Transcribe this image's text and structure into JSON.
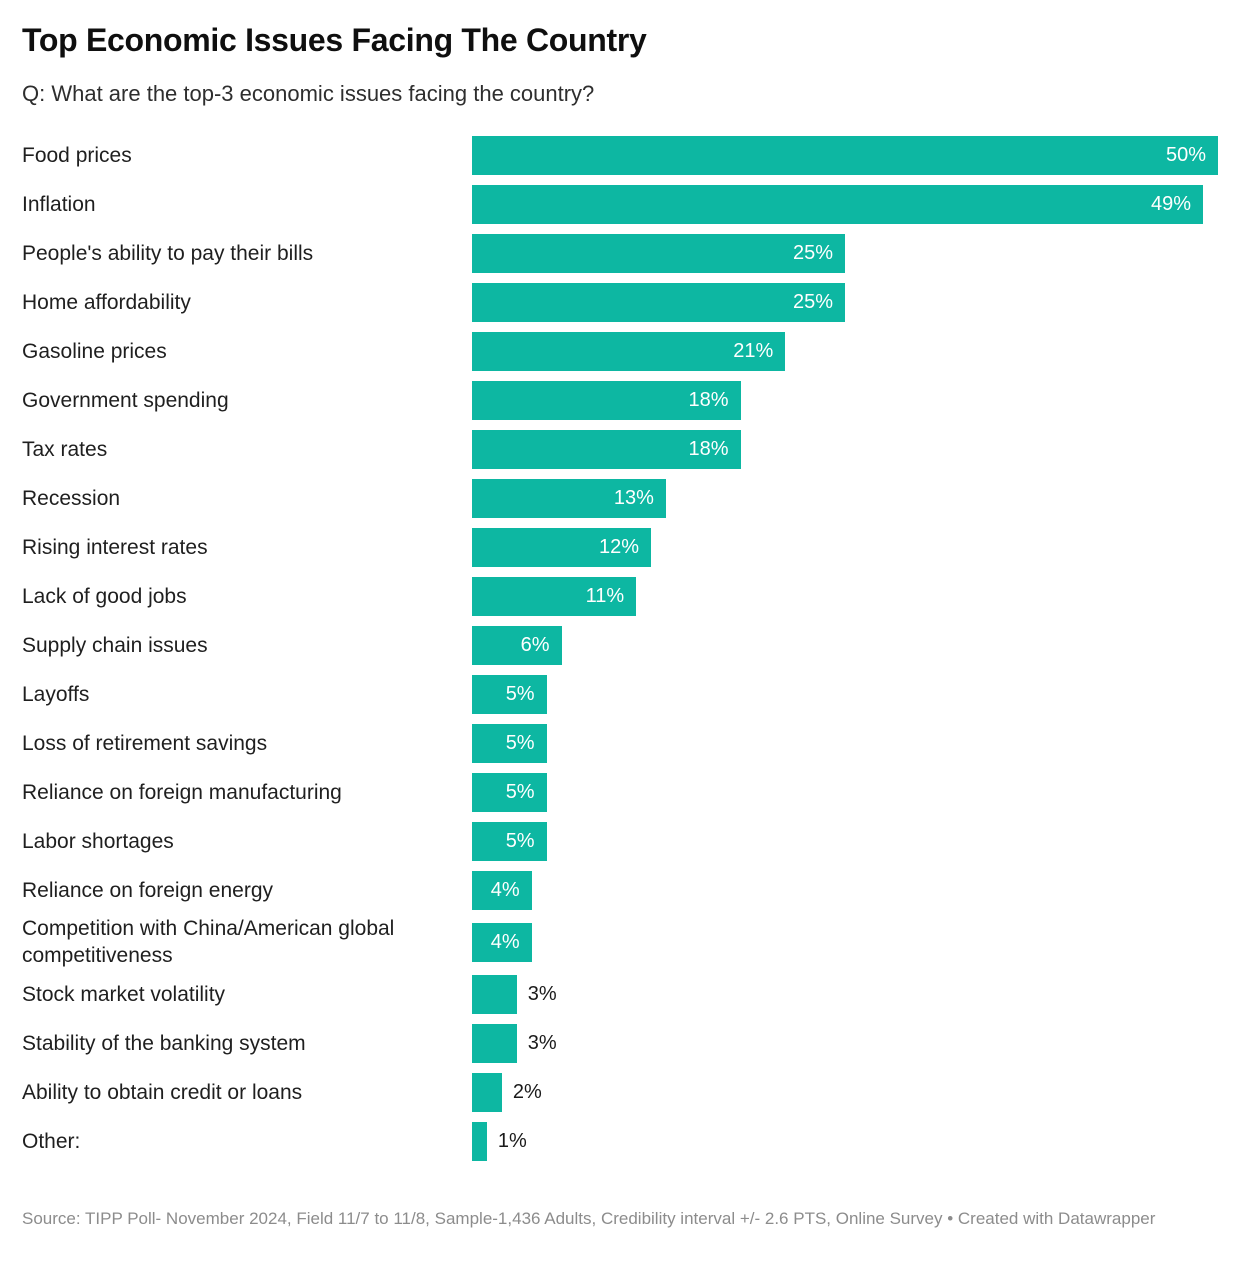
{
  "header": {
    "title": "Top Economic Issues Facing The Country",
    "subtitle": "Q: What are the top-3 economic issues facing the country?"
  },
  "chart_data": {
    "type": "bar",
    "orientation": "horizontal",
    "title": "Top Economic Issues Facing The Country",
    "subtitle": "Q: What are the top-3 economic issues facing the country?",
    "categories": [
      "Food prices",
      "Inflation",
      "People's ability to pay their bills",
      "Home affordability",
      "Gasoline prices",
      "Government spending",
      "Tax rates",
      "Recession",
      "Rising interest rates",
      "Lack of good jobs",
      "Supply chain issues",
      "Layoffs",
      "Loss of retirement savings",
      "Reliance on foreign manufacturing",
      "Labor shortages",
      "Reliance on foreign energy",
      "Competition with China/American global competitiveness",
      "Stock market volatility",
      "Stability of the banking system",
      "Ability to obtain credit or loans",
      "Other:"
    ],
    "values": [
      50,
      49,
      25,
      25,
      21,
      18,
      18,
      13,
      12,
      11,
      6,
      5,
      5,
      5,
      5,
      4,
      4,
      3,
      3,
      2,
      1
    ],
    "value_suffix": "%",
    "xlim": [
      0,
      50
    ],
    "grid": false,
    "legend": false,
    "bar_color": "#0db7a2",
    "label_inside_threshold": 4,
    "xlabel": "",
    "ylabel": ""
  },
  "footer": {
    "source": "Source: TIPP Poll- November 2024, Field 11/7 to 11/8, Sample-1,436 Adults, Credibility interval +/- 2.6 PTS, Online Survey • Created with Datawrapper"
  }
}
